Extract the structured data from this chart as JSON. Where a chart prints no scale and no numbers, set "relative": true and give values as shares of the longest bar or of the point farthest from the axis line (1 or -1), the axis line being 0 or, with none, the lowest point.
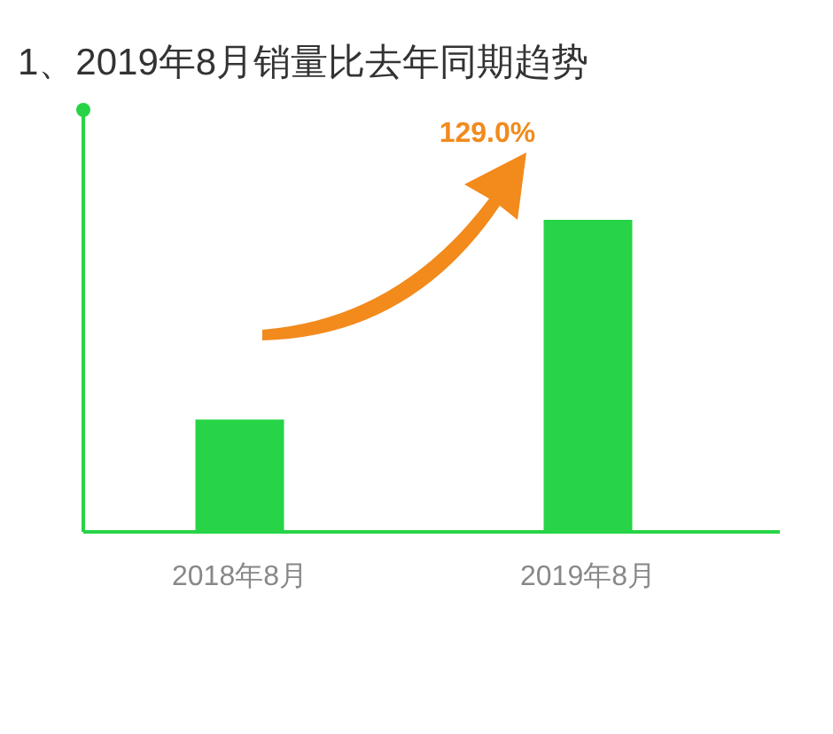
{
  "chart_data": {
    "type": "bar",
    "title": "1、2019年8月销量比去年同期趋势",
    "categories": [
      "2018年8月",
      "2019年8月"
    ],
    "values": [
      0.36,
      1
    ],
    "relative": true,
    "color": "#27d447",
    "annotations": [
      "129.0%"
    ]
  }
}
